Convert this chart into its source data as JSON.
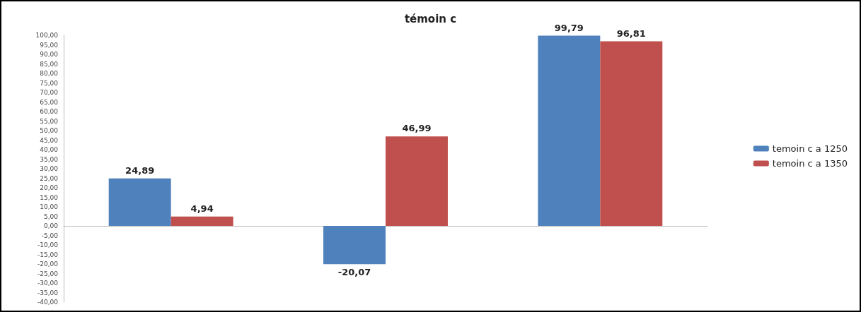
{
  "chart_data": {
    "type": "bar",
    "title": "témoin c",
    "categories": [
      null,
      null,
      null
    ],
    "series": [
      {
        "name": "temoin c a 1250",
        "color": "#4f81bd",
        "values": [
          24.89,
          -20.07,
          99.79
        ],
        "value_labels": [
          "24,89",
          "-20,07",
          "99,79"
        ]
      },
      {
        "name": "temoin c a 1350",
        "color": "#c0504d",
        "values": [
          4.94,
          46.99,
          96.81
        ],
        "value_labels": [
          "4,94",
          "46,99",
          "96,81"
        ]
      }
    ],
    "ylim": [
      -40,
      100
    ],
    "yticks": [
      {
        "value": 100,
        "label": "100,00"
      },
      {
        "value": 95,
        "label": "95,00"
      },
      {
        "value": 90,
        "label": "90,00"
      },
      {
        "value": 85,
        "label": "85,00"
      },
      {
        "value": 80,
        "label": "80,00"
      },
      {
        "value": 75,
        "label": "75,00"
      },
      {
        "value": 70,
        "label": "70,00"
      },
      {
        "value": 65,
        "label": "65,00"
      },
      {
        "value": 60,
        "label": "60,00"
      },
      {
        "value": 55,
        "label": "55,00"
      },
      {
        "value": 50,
        "label": "50,00"
      },
      {
        "value": 45,
        "label": "45,00"
      },
      {
        "value": 40,
        "label": "40,00"
      },
      {
        "value": 35,
        "label": "35,00"
      },
      {
        "value": 30,
        "label": "30,00"
      },
      {
        "value": 25,
        "label": "25,00"
      },
      {
        "value": 20,
        "label": "20,00"
      },
      {
        "value": 15,
        "label": "15,00"
      },
      {
        "value": 10,
        "label": "10,00"
      },
      {
        "value": 5,
        "label": "5,00"
      },
      {
        "value": 0,
        "label": "0,00"
      },
      {
        "value": -5,
        "label": "-5,00"
      },
      {
        "value": -10,
        "label": "-10,00"
      },
      {
        "value": -15,
        "label": "-15,00"
      },
      {
        "value": -20,
        "label": "-20,00"
      },
      {
        "value": -25,
        "label": "-25,00"
      },
      {
        "value": -30,
        "label": "-30,00"
      },
      {
        "value": -35,
        "label": "-35,00"
      },
      {
        "value": -40,
        "label": "-40,00"
      }
    ],
    "legend": "right"
  }
}
